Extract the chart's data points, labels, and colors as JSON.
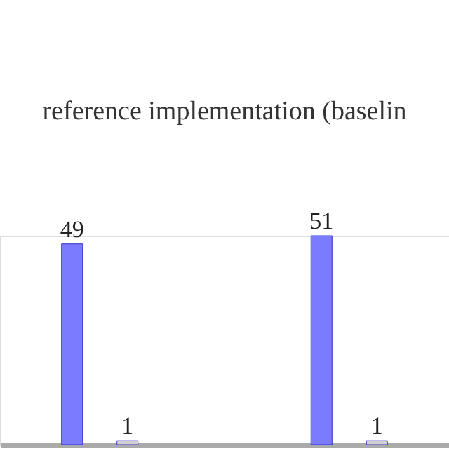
{
  "chart_data": {
    "type": "bar",
    "title": "reference implementation (baselin",
    "categories": [
      null,
      null
    ],
    "series": [
      {
        "color": "#7b7bff",
        "values": [
          49,
          51
        ]
      },
      {
        "color": "#d0d0d0",
        "values": [
          1,
          1
        ]
      }
    ],
    "data_labels": true,
    "grid": false,
    "legend": false,
    "tick_labels": false
  }
}
